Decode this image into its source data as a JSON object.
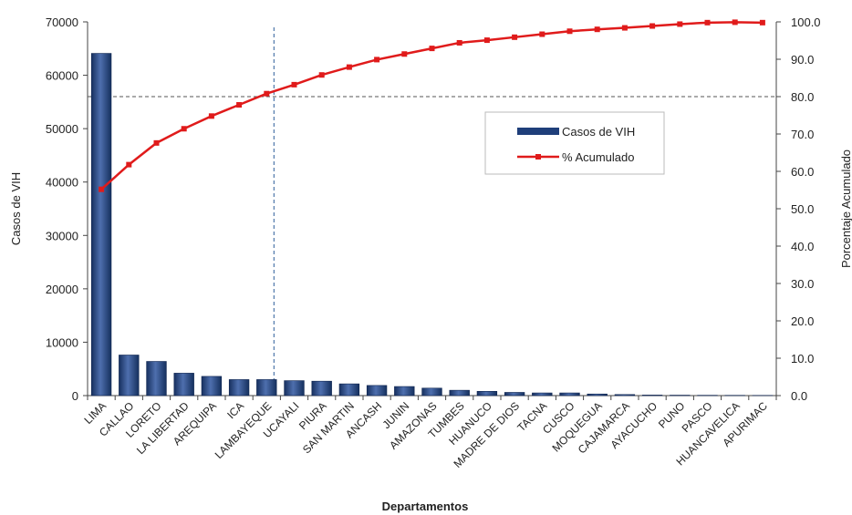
{
  "chart_data": {
    "type": "bar",
    "xlabel": "Departamentos",
    "ylabel": "Casos de VIH",
    "y2label": "Porcentaje Acumulado",
    "categories": [
      "LIMA",
      "CALLAO",
      "LORETO",
      "LA LIBERTAD",
      "AREQUIPA",
      "ICA",
      "LAMBAYEQUE",
      "UCAYALI",
      "PIURA",
      "SAN MARTIN",
      "ANCASH",
      "JUNIN",
      "AMAZONAS",
      "TUMBES",
      "HUANUCO",
      "MADRE DE DIOS",
      "TACNA",
      "CUSCO",
      "MOQUEGUA",
      "CAJAMARCA",
      "AYACUCHO",
      "PUNO",
      "PASCO",
      "HUANCAVELICA",
      "APURIMAC"
    ],
    "series": [
      {
        "name": "Casos de VIH",
        "axis": "left",
        "type": "bar",
        "values": [
          64100,
          7600,
          6400,
          4200,
          3600,
          3000,
          3000,
          2800,
          2700,
          2200,
          1900,
          1700,
          1400,
          1000,
          800,
          600,
          500,
          500,
          300,
          200,
          100,
          80,
          60,
          50,
          40
        ]
      },
      {
        "name": "% Acumulado",
        "axis": "right",
        "type": "line",
        "values": [
          55.2,
          61.8,
          67.6,
          71.4,
          74.8,
          77.8,
          80.8,
          83.2,
          85.8,
          87.9,
          89.9,
          91.4,
          92.9,
          94.4,
          95.1,
          95.9,
          96.7,
          97.5,
          98.0,
          98.4,
          98.9,
          99.4,
          99.8,
          99.9,
          99.8
        ]
      }
    ],
    "ylim": [
      0,
      70000
    ],
    "yticks": [
      "0",
      "10000",
      "20000",
      "30000",
      "40000",
      "50000",
      "60000",
      "70000"
    ],
    "y2lim": [
      0,
      100
    ],
    "y2ticks": [
      "0.0",
      "10.0",
      "20.0",
      "30.0",
      "40.0",
      "50.0",
      "60.0",
      "70.0",
      "80.0",
      "90.0",
      "100.0"
    ],
    "reference_lines": {
      "horizontal_y2": 80,
      "vertical_after_category": "LAMBAYEQUE"
    },
    "legend": {
      "position": "right-center"
    },
    "grid": false,
    "colors": {
      "bar": "#1f3f7a",
      "bar_highlight": "#4a6aa8",
      "line": "#e01b1b",
      "reference": "#555555",
      "vertical_reference": "#2c5d9a"
    }
  }
}
